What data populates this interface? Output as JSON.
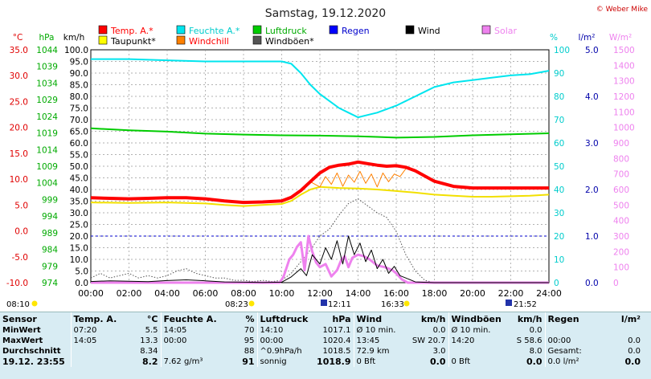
{
  "title": "Samstag, 19.12.2020",
  "credit": "© Weber Mike",
  "axis_units": {
    "temp": "°C",
    "pressure": "hPa",
    "wind": "km/h",
    "humidity": "%",
    "rain": "l/m²",
    "solar": "W/m²"
  },
  "legend": [
    {
      "name": "Temp. A.*",
      "color": "#ff0000"
    },
    {
      "name": "Feuchte A.*",
      "color": "#00e5ee"
    },
    {
      "name": "Luftdruck",
      "color": "#00cc00"
    },
    {
      "name": "Regen",
      "color": "#0000ff"
    },
    {
      "name": "Wind",
      "color": "#000000"
    },
    {
      "name": "Solar",
      "color": "#ee82ee"
    },
    {
      "name": "Taupunkt*",
      "color": "#ffff00"
    },
    {
      "name": "Windchill",
      "color": "#ff8000"
    },
    {
      "name": "Windböen*",
      "color": "#555555"
    }
  ],
  "sun_marks": {
    "sunrise": "08:10",
    "sunset": "16:33",
    "rise_label": "08:23",
    "noon": "12:11",
    "moon": "21:52"
  },
  "chart_data": {
    "type": "line",
    "x_label_ticks": [
      "00:00",
      "02:00",
      "04:00",
      "06:00",
      "08:00",
      "10:00",
      "12:00",
      "14:00",
      "16:00",
      "18:00",
      "20:00",
      "22:00",
      "24:00"
    ],
    "xlim_hours": [
      0,
      24
    ],
    "axes": {
      "temp": {
        "unit": "°C",
        "range": [
          -10,
          35
        ],
        "ticks": [
          "35.0",
          "30.0",
          "25.0",
          "20.0",
          "15.0",
          "10.0",
          "5.0",
          "0.0",
          "-5.0",
          "-10.0"
        ]
      },
      "pressure": {
        "unit": "hPa",
        "range": [
          974,
          1044
        ],
        "ticks": [
          "1044",
          "1039",
          "1034",
          "1029",
          "1024",
          "1019",
          "1014",
          "1009",
          "1004",
          "999",
          "994",
          "989",
          "984",
          "979",
          "974"
        ]
      },
      "wind": {
        "unit": "km/h",
        "range": [
          0,
          100
        ],
        "ticks": [
          "100.0",
          "95.0",
          "90.0",
          "85.0",
          "80.0",
          "75.0",
          "70.0",
          "65.0",
          "60.0",
          "55.0",
          "50.0",
          "45.0",
          "40.0",
          "35.0",
          "30.0",
          "25.0",
          "20.0",
          "15.0",
          "10.0",
          "5.0",
          "0.0"
        ]
      },
      "humidity": {
        "unit": "%",
        "range": [
          0,
          100
        ],
        "ticks": [
          "100",
          "90",
          "80",
          "70",
          "60",
          "50",
          "40",
          "30",
          "20",
          "10",
          "0"
        ]
      },
      "rain": {
        "unit": "l/m²",
        "range": [
          0,
          5
        ],
        "ticks": [
          "5.0",
          "4.0",
          "3.0",
          "2.0",
          "1.0",
          "0.0"
        ]
      },
      "solar": {
        "unit": "W/m²",
        "range": [
          0,
          1500
        ],
        "ticks": [
          "1500",
          "1400",
          "1300",
          "1200",
          "1100",
          "1000",
          "900",
          "800",
          "700",
          "600",
          "500",
          "400",
          "300",
          "200",
          "100",
          "0"
        ]
      }
    },
    "grid": true,
    "series": [
      {
        "name": "Temp. A.*",
        "axis": "temp",
        "color": "#ff0000",
        "width": 4,
        "x": [
          0,
          1,
          2,
          3,
          4,
          5,
          6,
          7,
          8,
          9,
          10,
          10.5,
          11,
          11.5,
          12,
          12.5,
          13,
          13.5,
          14,
          14.5,
          15,
          15.5,
          16,
          16.5,
          17,
          17.5,
          18,
          19,
          20,
          21,
          22,
          23,
          24
        ],
        "y": [
          6.4,
          6.3,
          6.2,
          6.3,
          6.4,
          6.4,
          6.2,
          5.8,
          5.5,
          5.6,
          5.8,
          6.5,
          7.8,
          9.5,
          11.2,
          12.3,
          12.7,
          12.9,
          13.3,
          13.0,
          12.7,
          12.5,
          12.6,
          12.3,
          11.6,
          10.6,
          9.6,
          8.6,
          8.3,
          8.3,
          8.3,
          8.3,
          8.3
        ]
      },
      {
        "name": "Taupunkt*",
        "axis": "temp",
        "color": "#ffff00",
        "width": 2,
        "x": [
          0,
          2,
          4,
          6,
          7,
          8,
          9,
          10,
          10.5,
          11,
          11.5,
          12,
          13,
          14,
          15,
          16,
          17,
          18,
          19,
          20,
          21,
          22,
          23,
          24
        ],
        "y": [
          5.5,
          5.4,
          5.5,
          5.3,
          5.0,
          4.8,
          5.0,
          5.2,
          5.8,
          7.0,
          8.0,
          8.5,
          8.3,
          8.2,
          8.0,
          7.7,
          7.4,
          7.0,
          6.8,
          6.6,
          6.6,
          6.7,
          6.8,
          7.0
        ]
      },
      {
        "name": "Windchill",
        "axis": "temp",
        "color": "#ff8000",
        "width": 1,
        "x": [
          10.5,
          11,
          11.5,
          12,
          12.3,
          12.6,
          12.9,
          13.2,
          13.5,
          13.8,
          14.1,
          14.4,
          14.7,
          15,
          15.3,
          15.6,
          15.9,
          16.2,
          16.5
        ],
        "y": [
          6.5,
          7.8,
          9.5,
          8.5,
          10.5,
          9.0,
          11.2,
          8.6,
          10.8,
          9.4,
          11.5,
          9.2,
          11.0,
          8.5,
          11.2,
          9.5,
          11.0,
          10.5,
          12.0
        ]
      },
      {
        "name": "Feuchte A.*",
        "axis": "humidity",
        "color": "#00e5ee",
        "width": 2,
        "x": [
          0,
          2,
          4,
          6,
          8,
          10,
          10.5,
          11,
          11.5,
          12,
          12.5,
          13,
          13.5,
          14,
          14.5,
          15,
          15.5,
          16,
          16.5,
          17,
          17.5,
          18,
          19,
          20,
          21,
          22,
          23,
          24
        ],
        "y": [
          96,
          96,
          95.5,
          95,
          95,
          95,
          94,
          90,
          85,
          81,
          78,
          75,
          73,
          71,
          72,
          73,
          74.5,
          76,
          78,
          80,
          82,
          84,
          86,
          87,
          88,
          89,
          89.5,
          91
        ]
      },
      {
        "name": "Luftdruck",
        "axis": "pressure",
        "color": "#00cc00",
        "width": 2,
        "x": [
          0,
          2,
          4,
          6,
          8,
          10,
          12,
          14,
          15,
          16,
          18,
          20,
          22,
          24
        ],
        "y": [
          1020.4,
          1019.8,
          1019.4,
          1018.8,
          1018.5,
          1018.3,
          1018.2,
          1018.0,
          1017.8,
          1017.6,
          1017.8,
          1018.3,
          1018.6,
          1018.9
        ]
      },
      {
        "name": "Solar",
        "axis": "solar",
        "color": "#ee82ee",
        "width": 3,
        "x": [
          0,
          9.9,
          10.1,
          10.4,
          10.6,
          10.8,
          11.0,
          11.2,
          11.4,
          11.6,
          11.8,
          12.0,
          12.3,
          12.6,
          12.9,
          13.1,
          13.3,
          13.5,
          13.7,
          14.0,
          14.3,
          14.6,
          15.0,
          15.4,
          15.8,
          16.0,
          16.3,
          16.6,
          24
        ],
        "y": [
          0,
          0,
          40,
          150,
          180,
          230,
          260,
          80,
          300,
          200,
          130,
          100,
          120,
          40,
          80,
          140,
          170,
          100,
          160,
          180,
          170,
          150,
          110,
          100,
          80,
          60,
          20,
          0,
          0
        ]
      },
      {
        "name": "Wind",
        "axis": "wind",
        "color": "#000000",
        "width": 1,
        "x": [
          0,
          1,
          2,
          3,
          4,
          5,
          6,
          7,
          8,
          9,
          10,
          10.5,
          11,
          11.3,
          11.6,
          12,
          12.3,
          12.6,
          12.9,
          13.2,
          13.5,
          13.8,
          14.1,
          14.4,
          14.7,
          15,
          15.3,
          15.6,
          15.9,
          16.2,
          16.5,
          17,
          18,
          24
        ],
        "y": [
          0.5,
          0.8,
          0.6,
          0.4,
          0.9,
          1.2,
          0.8,
          0.3,
          0.2,
          0.1,
          0.2,
          2.5,
          6,
          3,
          12,
          8,
          15,
          10,
          18,
          8,
          20,
          12,
          17,
          9,
          14,
          6,
          10,
          4,
          7,
          3,
          2,
          0.3,
          0,
          0
        ]
      },
      {
        "name": "Windböen*",
        "axis": "wind",
        "color": "#555555",
        "width": 1,
        "x": [
          0,
          0.5,
          1,
          1.5,
          2,
          2.5,
          3,
          3.5,
          4,
          4.5,
          5,
          5.5,
          6,
          6.5,
          7,
          7.5,
          8,
          8.5,
          9,
          9.5,
          10,
          10.5,
          11,
          11.5,
          12,
          12.5,
          13,
          13.5,
          14,
          14.5,
          15,
          15.5,
          16,
          16.5,
          17,
          17.5,
          18,
          24
        ],
        "y": [
          2,
          4,
          2,
          3,
          4,
          2,
          3,
          2,
          3,
          5,
          6,
          4,
          3,
          2,
          2,
          1,
          1,
          0.5,
          1,
          0.5,
          1,
          4,
          9,
          14,
          20,
          23,
          29,
          34,
          36,
          33,
          30,
          28,
          22,
          12,
          5,
          1,
          0,
          0
        ]
      }
    ],
    "rain_level_line": 1.0
  },
  "stats": {
    "headers": [
      "Sensor",
      "Temp. A.",
      "°C",
      "Feuchte A.",
      "%",
      "Luftdruck",
      "hPa",
      "Wind",
      "km/h",
      "Windböen",
      "km/h",
      "Regen",
      "l/m²"
    ],
    "rows": [
      {
        "label": "MinWert",
        "cells": [
          "07:20",
          "5.5",
          "14:05",
          "70",
          "14:10",
          "1017.1",
          "Ø 10 min.",
          "0.0",
          "Ø 10 min.",
          "0.0",
          "",
          ""
        ]
      },
      {
        "label": "MaxWert",
        "cells": [
          "14:05",
          "13.3",
          "00:00",
          "95",
          "00:00",
          "1020.4",
          "13:45",
          "SW 20.7",
          "14:20",
          "S 58.6",
          "00:00",
          "0.0"
        ]
      },
      {
        "label": "Durchschnitt",
        "cells": [
          "",
          "8.34",
          "",
          "88",
          "^0.9hPa/h",
          "1018.5",
          "72.9 km",
          "3.0",
          "",
          "8.0",
          "Gesamt:",
          "0.0"
        ]
      },
      {
        "label": "19.12. 23:55",
        "cells": [
          "",
          "8.2",
          "7.62 g/m³",
          "91",
          "sonnig",
          "1018.9",
          "0 Bft",
          "0.0",
          "0 Bft",
          "0.0",
          "0.0 l/m²",
          "0.0"
        ]
      }
    ]
  }
}
